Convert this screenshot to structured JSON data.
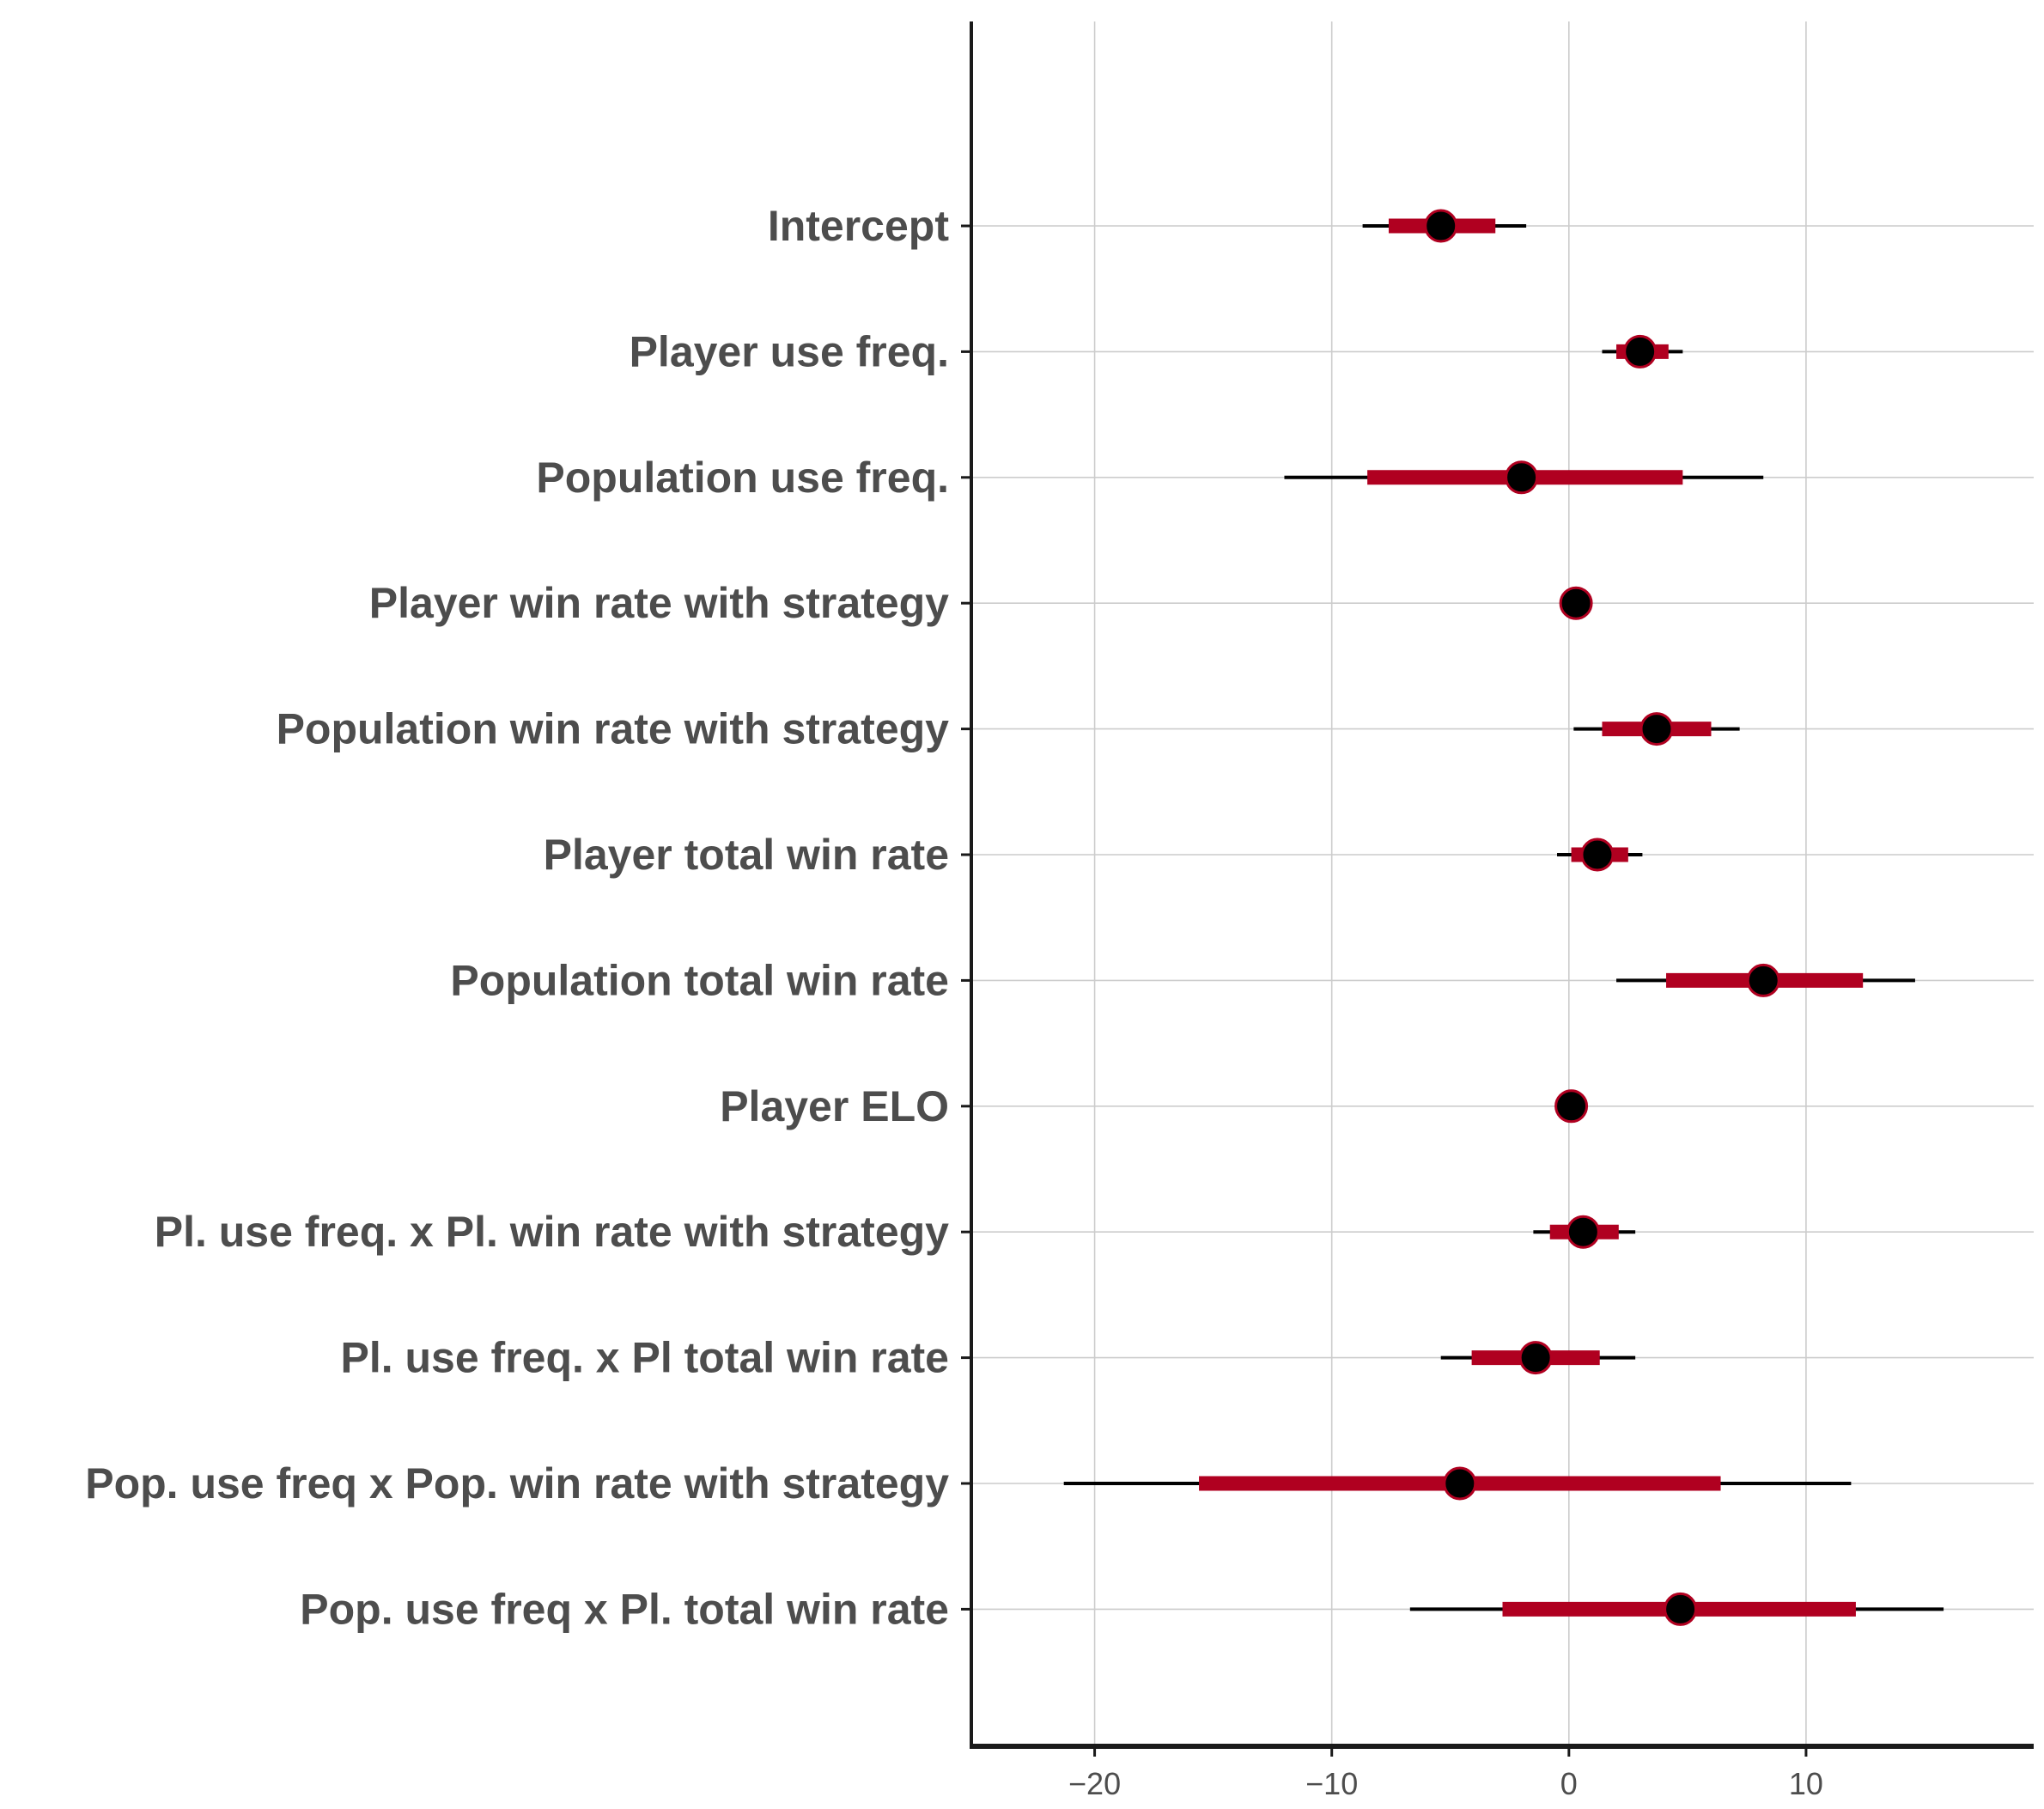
{
  "chart_data": {
    "type": "forest",
    "title": "",
    "xlabel": "",
    "ylabel": "",
    "xlim": [
      -25.2,
      19.6
    ],
    "xticks": [
      -20,
      -10,
      0,
      10
    ],
    "xtick_labels": [
      "−20",
      "−10",
      "0",
      "10"
    ],
    "grid": true,
    "legend": "none",
    "colors": {
      "inner_interval": "#b00020",
      "outer_interval": "#000000",
      "point": "#000000",
      "point_outline": "#b00020",
      "grid": "#cccccc",
      "axis": "#1a1a1a"
    },
    "terms": [
      {
        "label": "Intercept",
        "estimate": -5.4,
        "inner": [
          -7.6,
          -3.1
        ],
        "outer": [
          -8.7,
          -1.8
        ]
      },
      {
        "label": "Player use freq.",
        "estimate": 3.0,
        "inner": [
          2.0,
          4.2
        ],
        "outer": [
          1.4,
          4.8
        ]
      },
      {
        "label": "Population use freq.",
        "estimate": -2.0,
        "inner": [
          -8.5,
          4.8
        ],
        "outer": [
          -12.0,
          8.2
        ]
      },
      {
        "label": "Player win rate with strategy",
        "estimate": 0.3,
        "inner": [
          0.1,
          0.5
        ],
        "outer": [
          0.0,
          0.6
        ]
      },
      {
        "label": "Population win rate with strategy",
        "estimate": 3.7,
        "inner": [
          1.4,
          6.0
        ],
        "outer": [
          0.2,
          7.2
        ]
      },
      {
        "label": "Player total win rate",
        "estimate": 1.2,
        "inner": [
          0.1,
          2.5
        ],
        "outer": [
          -0.5,
          3.1
        ]
      },
      {
        "label": "Population total win rate",
        "estimate": 8.2,
        "inner": [
          4.1,
          12.4
        ],
        "outer": [
          2.0,
          14.6
        ]
      },
      {
        "label": "Player ELO",
        "estimate": 0.1,
        "inner": [
          0.0,
          0.2
        ],
        "outer": [
          -0.1,
          0.3
        ]
      },
      {
        "label": "Pl. use freq. x Pl. win rate with strategy",
        "estimate": 0.6,
        "inner": [
          -0.8,
          2.1
        ],
        "outer": [
          -1.5,
          2.8
        ]
      },
      {
        "label": "Pl. use freq. x Pl total win rate",
        "estimate": -1.4,
        "inner": [
          -4.1,
          1.3
        ],
        "outer": [
          -5.4,
          2.8
        ]
      },
      {
        "label": "Pop. use freq x Pop. win rate with strategy",
        "estimate": -4.6,
        "inner": [
          -15.6,
          6.4
        ],
        "outer": [
          -21.3,
          11.9
        ]
      },
      {
        "label": "Pop. use freq x Pl. total win rate",
        "estimate": 4.7,
        "inner": [
          -2.8,
          12.1
        ],
        "outer": [
          -6.7,
          15.8
        ]
      }
    ]
  }
}
